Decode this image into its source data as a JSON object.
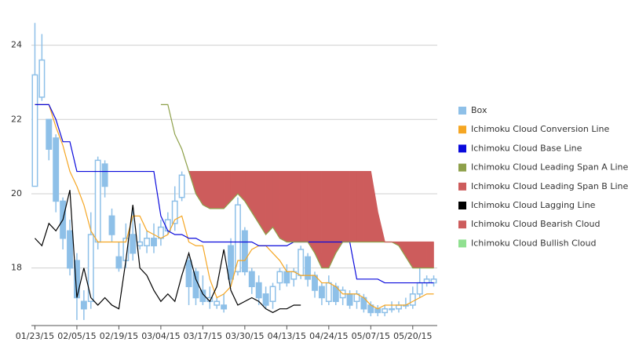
{
  "chart_data": {
    "type": "candlestick",
    "categories": [
      "01/23/15",
      null,
      null,
      null,
      null,
      null,
      "02/05/15",
      null,
      null,
      null,
      null,
      null,
      "02/19/15",
      null,
      null,
      null,
      null,
      null,
      "03/04/15",
      null,
      null,
      null,
      null,
      null,
      "03/17/15",
      null,
      null,
      null,
      null,
      null,
      "03/30/15",
      null,
      null,
      null,
      null,
      null,
      "04/13/15",
      null,
      null,
      null,
      null,
      null,
      "04/24/15",
      null,
      null,
      null,
      null,
      null,
      "05/07/15",
      null,
      null,
      null,
      null,
      null,
      "05/20/15",
      null,
      null,
      null
    ],
    "ylim": [
      16.45,
      24.9
    ],
    "yticks": [
      18,
      20,
      22,
      24
    ],
    "grid": true,
    "legend": "right",
    "series": [
      {
        "name": "Box",
        "type": "candlestick",
        "color": "#8ec0e8",
        "open": [
          20.2,
          22.6,
          22.0,
          21.5,
          19.8,
          19.0,
          18.2,
          17.1,
          17.1,
          18.7,
          20.8,
          19.4,
          18.3,
          18.2,
          18.9,
          18.6,
          18.6,
          18.8,
          18.8,
          19.0,
          19.2,
          19.9,
          18.2,
          17.9,
          17.4,
          17.1,
          17.0,
          17.0,
          18.6,
          17.9,
          19.0,
          17.9,
          17.6,
          17.3,
          17.1,
          17.6,
          17.9,
          17.7,
          17.8,
          18.3,
          17.8,
          17.5,
          17.1,
          17.5,
          17.2,
          17.3,
          17.1,
          17.2,
          17.0,
          16.9,
          16.8,
          16.9,
          16.9,
          17.0,
          17.0,
          17.3,
          17.6,
          17.6
        ],
        "close": [
          23.2,
          23.6,
          21.2,
          19.8,
          18.8,
          18.0,
          17.2,
          16.9,
          18.9,
          20.9,
          20.2,
          18.9,
          18.0,
          18.8,
          18.4,
          18.7,
          18.8,
          18.6,
          19.1,
          19.3,
          19.8,
          20.5,
          17.5,
          17.2,
          17.1,
          17.2,
          17.1,
          16.9,
          17.7,
          19.7,
          17.9,
          17.5,
          17.2,
          17.0,
          17.5,
          17.9,
          17.6,
          17.9,
          18.5,
          17.7,
          17.4,
          17.2,
          17.6,
          17.1,
          17.4,
          17.0,
          17.3,
          16.9,
          16.8,
          16.8,
          16.9,
          16.9,
          17.0,
          17.0,
          17.3,
          17.6,
          17.7,
          17.7
        ],
        "high": [
          24.6,
          24.3,
          22.0,
          21.6,
          19.9,
          19.3,
          18.4,
          17.4,
          19.5,
          21.0,
          20.9,
          19.6,
          18.7,
          19.2,
          19.6,
          19.2,
          19.0,
          19.2,
          19.3,
          19.5,
          20.2,
          20.6,
          18.3,
          18.0,
          17.8,
          17.5,
          17.2,
          17.3,
          18.8,
          19.9,
          19.1,
          18.0,
          17.8,
          17.5,
          17.6,
          18.0,
          18.1,
          18.0,
          18.6,
          18.4,
          17.9,
          17.6,
          17.8,
          17.6,
          17.5,
          17.4,
          17.4,
          17.3,
          17.1,
          17.0,
          17.0,
          17.1,
          17.1,
          17.2,
          17.5,
          18.0,
          17.8,
          17.8
        ],
        "low": [
          20.2,
          22.5,
          20.9,
          19.5,
          18.5,
          17.8,
          16.6,
          16.6,
          16.9,
          18.5,
          19.9,
          18.7,
          17.9,
          18.0,
          18.2,
          18.5,
          18.4,
          18.4,
          18.6,
          18.9,
          19.0,
          19.8,
          17.0,
          17.0,
          17.0,
          16.9,
          16.9,
          16.8,
          17.5,
          17.8,
          17.8,
          17.3,
          17.0,
          16.9,
          16.9,
          17.4,
          17.5,
          17.5,
          17.7,
          17.5,
          17.2,
          17.0,
          17.0,
          17.0,
          17.0,
          16.9,
          16.9,
          16.8,
          16.7,
          16.7,
          16.7,
          16.8,
          16.8,
          16.9,
          16.9,
          17.2,
          17.5,
          17.5
        ]
      },
      {
        "name": "Ichimoku Cloud Conversion Line",
        "type": "line",
        "color": "#f5a623",
        "values": [
          22.4,
          22.4,
          22.4,
          21.8,
          21.3,
          20.6,
          20.2,
          19.7,
          19.0,
          18.7,
          18.7,
          18.7,
          18.7,
          18.7,
          19.4,
          19.4,
          19.0,
          18.9,
          18.8,
          18.9,
          19.3,
          19.4,
          18.7,
          18.6,
          18.6,
          17.7,
          17.2,
          17.3,
          17.5,
          18.2,
          18.2,
          18.5,
          18.6,
          18.6,
          18.4,
          18.2,
          17.9,
          17.9,
          17.8,
          17.8,
          17.8,
          17.6,
          17.6,
          17.5,
          17.3,
          17.3,
          17.3,
          17.2,
          17.0,
          16.9,
          17.0,
          17.0,
          17.0,
          17.0,
          17.1,
          17.2,
          17.3,
          17.3
        ]
      },
      {
        "name": "Ichimoku Cloud Base Line",
        "type": "line",
        "color": "#0a0adc",
        "values": [
          22.4,
          22.4,
          22.4,
          22.0,
          21.4,
          21.4,
          20.6,
          20.6,
          20.6,
          20.6,
          20.6,
          20.6,
          20.6,
          20.6,
          20.6,
          20.6,
          20.6,
          20.6,
          19.4,
          19.0,
          18.9,
          18.9,
          18.8,
          18.8,
          18.7,
          18.7,
          18.7,
          18.7,
          18.7,
          18.7,
          18.7,
          18.7,
          18.6,
          18.6,
          18.6,
          18.6,
          18.6,
          18.7,
          18.7,
          18.7,
          18.7,
          18.7,
          18.7,
          18.7,
          18.7,
          18.7,
          17.7,
          17.7,
          17.7,
          17.7,
          17.6,
          17.6,
          17.6,
          17.6,
          17.6,
          17.6,
          17.6,
          17.6
        ]
      },
      {
        "name": "Ichimoku Cloud Leading Span A Line",
        "type": "line",
        "color": "#8ea04a",
        "values": [
          null,
          null,
          null,
          null,
          null,
          null,
          null,
          null,
          null,
          null,
          null,
          null,
          null,
          null,
          null,
          null,
          null,
          null,
          22.4,
          22.4,
          21.6,
          21.2,
          20.6,
          20.0,
          19.7,
          19.6,
          19.6,
          19.6,
          19.8,
          20.0,
          19.8,
          19.5,
          19.2,
          18.9,
          19.1,
          18.8,
          18.7,
          18.7,
          18.7,
          18.7,
          18.4,
          18.0,
          18.0,
          18.4,
          18.7,
          18.7,
          18.7,
          18.7,
          18.7,
          18.7,
          18.7,
          18.7,
          18.6,
          18.3,
          18.0,
          18.0,
          18.0,
          18.0
        ]
      },
      {
        "name": "Ichimoku Cloud Leading Span B Line",
        "type": "line",
        "color": "#cd5c5c",
        "values": [
          null,
          null,
          null,
          null,
          null,
          null,
          null,
          null,
          null,
          null,
          null,
          null,
          null,
          null,
          null,
          null,
          null,
          null,
          null,
          null,
          null,
          null,
          20.6,
          20.6,
          20.6,
          20.6,
          20.6,
          20.6,
          20.6,
          20.6,
          20.6,
          20.6,
          20.6,
          20.6,
          20.6,
          20.6,
          20.6,
          20.6,
          20.6,
          20.6,
          20.6,
          20.6,
          20.6,
          20.6,
          20.6,
          20.6,
          20.6,
          20.6,
          20.6,
          19.5,
          18.7,
          18.7,
          18.7,
          18.7,
          18.7,
          18.7,
          18.7,
          18.7
        ]
      },
      {
        "name": "Ichimoku Cloud Lagging Line",
        "type": "line",
        "color": "#000000",
        "values": [
          18.8,
          18.6,
          19.2,
          19.0,
          19.3,
          20.1,
          17.2,
          18.0,
          17.2,
          17.0,
          17.2,
          17.0,
          16.9,
          18.2,
          19.7,
          18.0,
          17.8,
          17.4,
          17.1,
          17.3,
          17.1,
          17.8,
          18.4,
          17.7,
          17.3,
          17.1,
          17.5,
          18.5,
          17.4,
          17.0,
          17.1,
          17.2,
          17.1,
          16.9,
          16.8,
          16.9,
          16.9,
          17.0,
          17.0,
          null,
          null,
          null,
          null,
          null,
          null,
          null,
          null,
          null,
          null,
          null,
          null,
          null,
          null,
          null,
          null,
          null,
          null,
          null
        ]
      },
      {
        "name": "Ichimoku Cloud Bearish Cloud",
        "type": "bearish-cloud",
        "color": "#cd5c5c"
      },
      {
        "name": "Ichimoku Cloud Bullish Cloud",
        "type": "bullish-cloud",
        "color": "#90e090"
      }
    ]
  }
}
